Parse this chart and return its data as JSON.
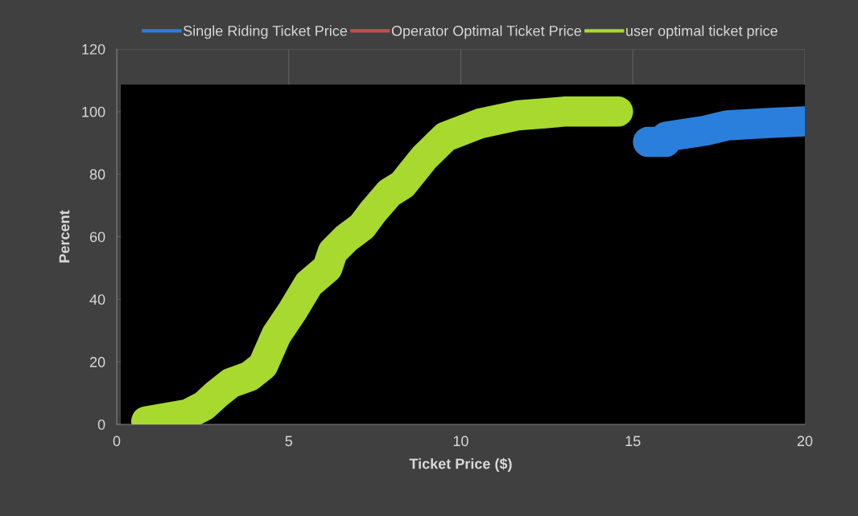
{
  "chart_data": {
    "type": "line",
    "xlabel": "Ticket Price ($)",
    "ylabel": "Percent",
    "xlim": [
      0,
      20
    ],
    "ylim": [
      0,
      120
    ],
    "xticks": [
      0,
      5,
      10,
      15,
      20
    ],
    "yticks": [
      0,
      20,
      40,
      60,
      80,
      100,
      120
    ],
    "grid": true,
    "legend": "top",
    "line_style": "solid",
    "series": [
      {
        "name": "Single Riding Ticket Price",
        "color": "#2a7fdc",
        "x": [
          15.44,
          15.95,
          15.97,
          17.11,
          17.74,
          19.06,
          20
        ],
        "values": [
          90.3,
          90.3,
          92,
          93.9,
          95.6,
          96.4,
          96.9
        ]
      },
      {
        "name": "Operator Optimal Ticket Price",
        "color": "#c0504d"
      },
      {
        "name": "user optimal ticket price",
        "color": "#a8d92e",
        "x": [
          0.86,
          2.07,
          2.53,
          2.92,
          3.31,
          3.86,
          4.25,
          4.64,
          5.11,
          5.58,
          6.12,
          6.28,
          6.67,
          7.13,
          7.45,
          7.92,
          8.3,
          8.93,
          9.55,
          10.56,
          11.66,
          12.5,
          13,
          14.57
        ],
        "values": [
          1,
          3.3,
          5.9,
          9.8,
          13.2,
          15.4,
          18.8,
          28.6,
          36.3,
          44.9,
          50,
          55.2,
          59.5,
          63.3,
          68,
          74,
          76.6,
          85.2,
          91.9,
          96.2,
          98.8,
          99.5,
          100,
          100
        ]
      }
    ]
  }
}
